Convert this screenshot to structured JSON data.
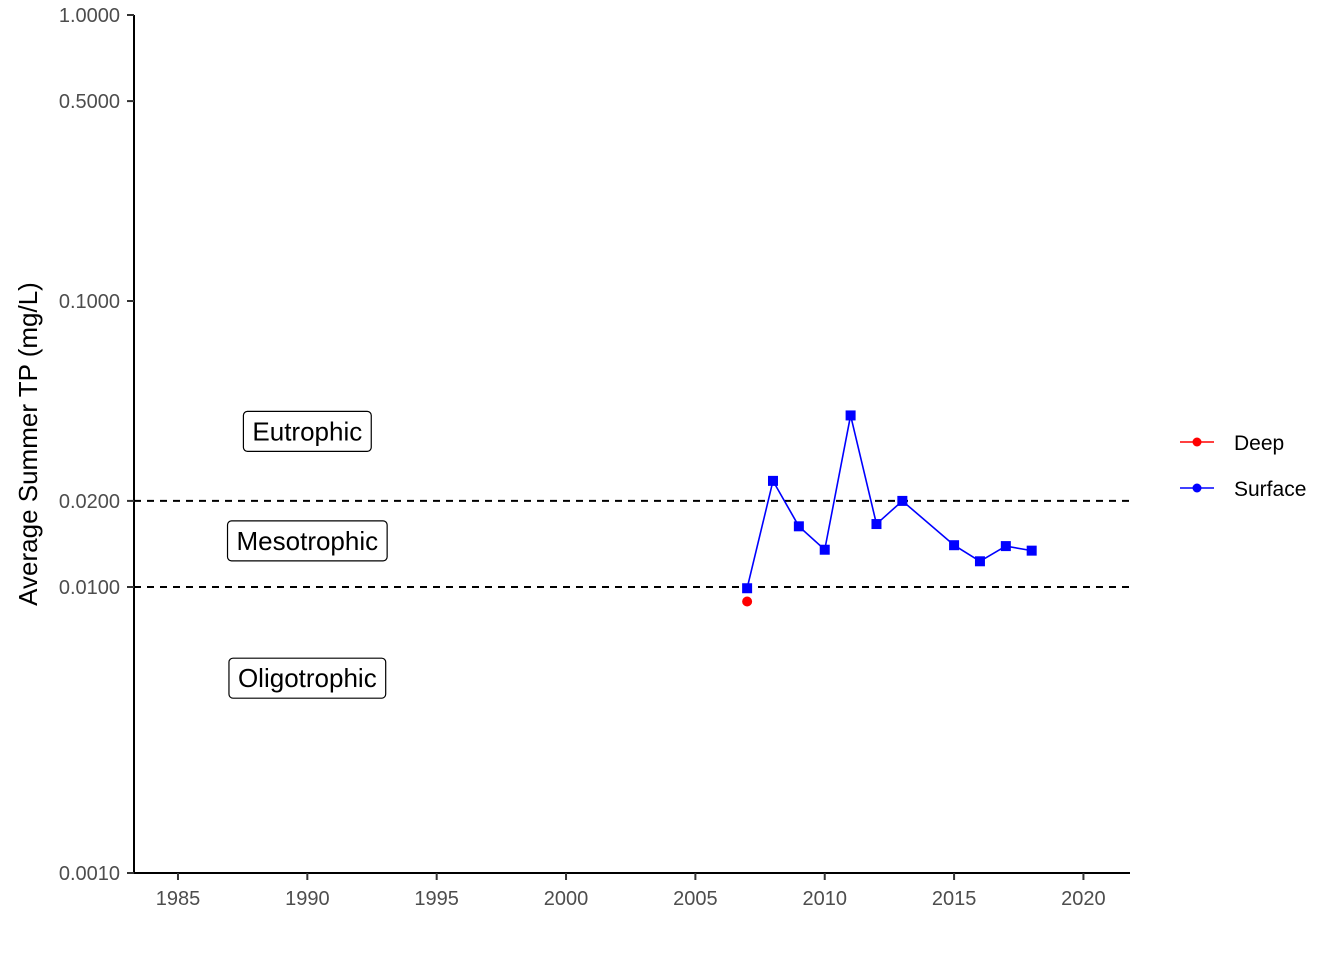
{
  "chart_data": {
    "type": "line",
    "title": "",
    "xlabel": "",
    "ylabel": "Average Summer TP (mg/L)",
    "y_scale": "log",
    "xlim": [
      1983.3,
      2021.8
    ],
    "ylim": [
      0.001,
      1.0
    ],
    "x_ticks": [
      1985,
      1990,
      1995,
      2000,
      2005,
      2010,
      2015,
      2020
    ],
    "x_tick_labels": [
      "1985",
      "1990",
      "1995",
      "2000",
      "2005",
      "2010",
      "2015",
      "2020"
    ],
    "y_ticks": [
      0.001,
      0.01,
      0.02,
      0.1,
      0.5,
      1.0
    ],
    "y_tick_labels": [
      "0.0010",
      "0.0100",
      "0.0200",
      "0.1000",
      "0.5000",
      "1.0000"
    ],
    "grid": false,
    "legend_position": "right",
    "thresholds": [
      {
        "value": 0.01,
        "style": "dashed"
      },
      {
        "value": 0.02,
        "style": "dashed"
      }
    ],
    "zones": [
      {
        "label": "Eutrophic",
        "x": 1990,
        "y": 0.035
      },
      {
        "label": "Mesotrophic",
        "x": 1990,
        "y": 0.0145
      },
      {
        "label": "Oligotrophic",
        "x": 1990,
        "y": 0.0048
      }
    ],
    "series": [
      {
        "name": "Deep",
        "color": "#ff0000",
        "marker": "circle",
        "x": [
          2007
        ],
        "y": [
          0.0089
        ]
      },
      {
        "name": "Surface",
        "color": "#0000ff",
        "marker": "square",
        "x": [
          2007,
          2008,
          2009,
          2010,
          2011,
          2012,
          2013,
          2015,
          2016,
          2017,
          2018
        ],
        "y": [
          0.0099,
          0.0235,
          0.0163,
          0.0135,
          0.0398,
          0.0166,
          0.02,
          0.014,
          0.0123,
          0.0139,
          0.0134
        ]
      }
    ]
  }
}
